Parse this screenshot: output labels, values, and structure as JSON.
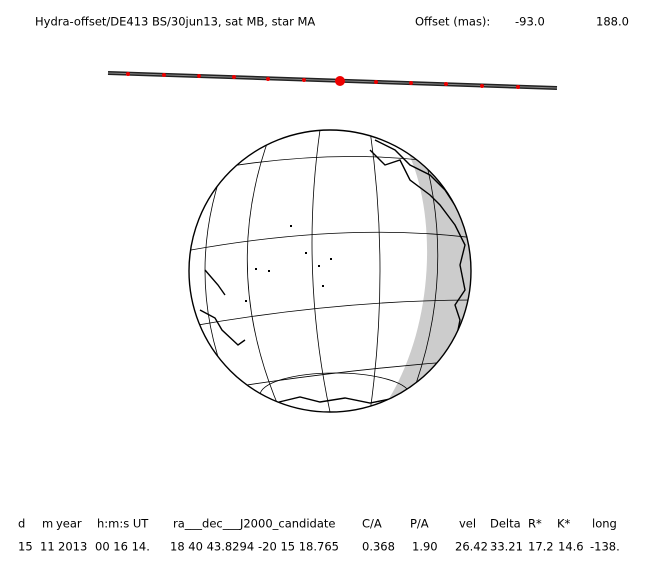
{
  "header": {
    "title": "Hydra-offset/DE413 BS/30jun13, sat MB, star MA",
    "offset_label": "Offset (mas):",
    "offset_ra": "-93.0",
    "offset_dec": "188.0"
  },
  "table": {
    "columns": [
      "d",
      "m",
      "year",
      "h:m:s UT",
      "ra___dec___J2000_candidate",
      "C/A",
      "P/A",
      "vel",
      "Delta",
      "R*",
      "K*",
      "long"
    ],
    "row": [
      "15",
      "11",
      "2013",
      "00 16 14.",
      "18 40 43.8294",
      "-20 15 18.765",
      "0.368",
      "1.90",
      "26.42",
      "33.21",
      "17.2",
      "14.6",
      "-138."
    ]
  }
}
